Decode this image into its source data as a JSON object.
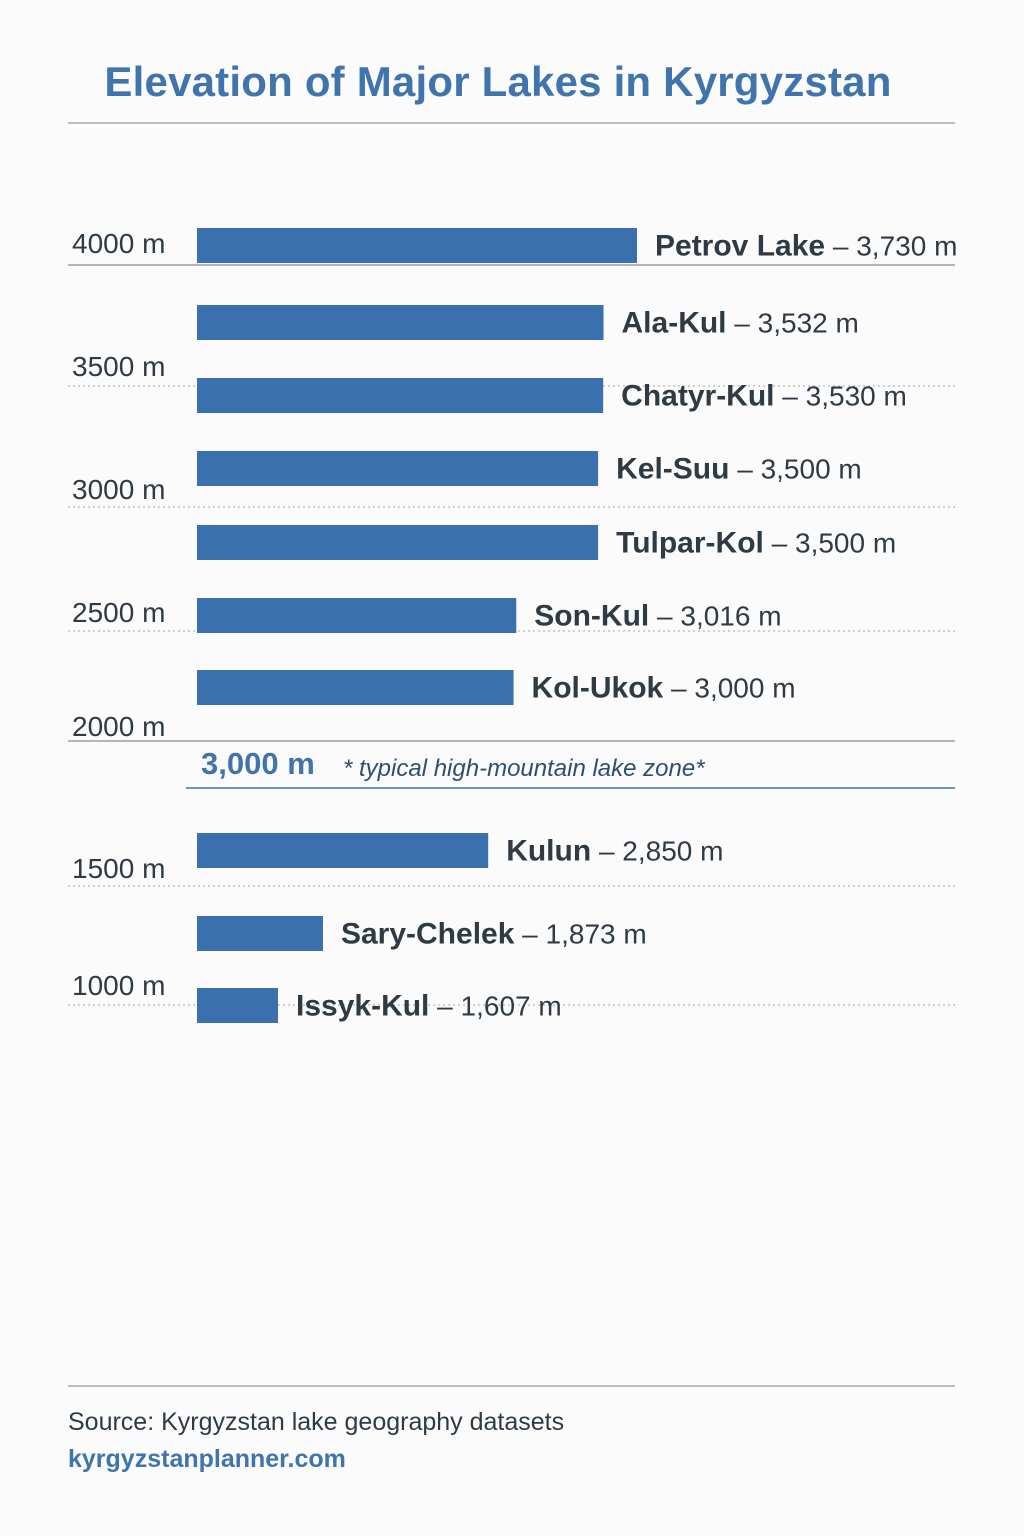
{
  "title": "Elevation of Major Lakes in Kyrgyzstan",
  "footer": {
    "source": "Source: Kyrgyzstan lake geography datasets",
    "website": "kyrgyzstanplanner.com"
  },
  "colors": {
    "bar": "#3a70ad",
    "title": "#3f74ad",
    "text": "#2f3a45"
  },
  "chart_data": {
    "type": "bar",
    "orientation": "horizontal",
    "title": "Elevation of Major Lakes in Kyrgyzstan",
    "xlabel": "",
    "ylabel": "",
    "tick_labels": [
      "4000 m",
      "3500 m",
      "3000 m",
      "2500 m",
      "2000 m",
      "1500 m",
      "1000 m"
    ],
    "grid": true,
    "categories": [
      "Petrov Lake",
      "Ala-Kul",
      "Chatyr-Kul",
      "Kel-Suu",
      "Tulpar-Kol",
      "Son-Kul",
      "Kol-Ukok",
      "Kulun",
      "Sary-Chelek",
      "Issyk-Kul"
    ],
    "values": [
      3730,
      3532,
      3530,
      3500,
      3500,
      3016,
      3000,
      2850,
      1873,
      1607
    ],
    "value_labels": [
      "3,730 m",
      "3,532 m",
      "3,530 m",
      "3,500 m",
      "3,500 m",
      "3,016 m",
      "3,000 m",
      "2,850 m",
      "1,873 m",
      "1,607 m"
    ],
    "reference_line": {
      "value": 3000,
      "label": "3,000 m",
      "note": "* typical high-mountain lake zone*"
    }
  }
}
